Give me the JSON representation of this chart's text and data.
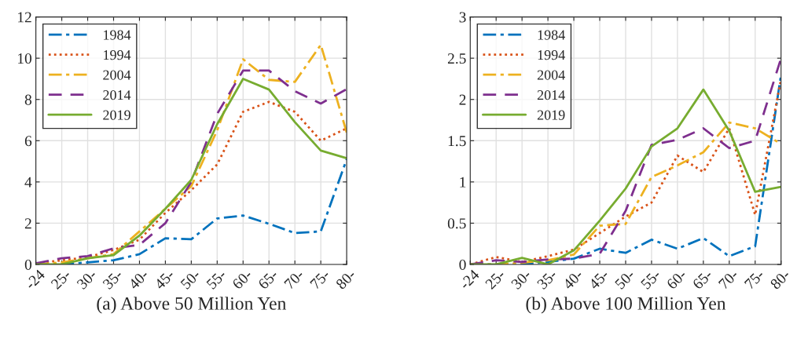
{
  "chart_data": [
    {
      "type": "line",
      "xlabel": "(a) Above 50 Million Yen",
      "categories": [
        "-24",
        "25-",
        "30-",
        "35-",
        "40-",
        "45-",
        "50-",
        "55-",
        "60-",
        "65-",
        "70-",
        "75-",
        "80-"
      ],
      "ylim": [
        0,
        12
      ],
      "yticks": [
        0,
        2,
        4,
        6,
        8,
        10,
        12
      ],
      "grid": true,
      "legend": "top left",
      "series": [
        {
          "name": "1984",
          "color": "#0072bd",
          "line_style": "dashdot",
          "values": [
            0,
            0,
            0.1,
            0.2,
            0.5,
            1.27,
            1.22,
            2.23,
            2.37,
            1.97,
            1.52,
            1.6,
            5.1
          ]
        },
        {
          "name": "1994",
          "color": "#d95319",
          "line_style": "dotted",
          "values": [
            0.05,
            0.2,
            0.35,
            0.7,
            1.2,
            2.5,
            3.6,
            4.85,
            7.4,
            7.88,
            7.4,
            6.0,
            6.6
          ]
        },
        {
          "name": "2004",
          "color": "#edb120",
          "line_style": "dashdot",
          "values": [
            0,
            0.1,
            0.3,
            0.5,
            1.6,
            2.7,
            3.8,
            6.5,
            9.95,
            8.95,
            8.85,
            10.65,
            6.4
          ]
        },
        {
          "name": "2014",
          "color": "#7e2f8e",
          "line_style": "dashed",
          "values": [
            0.05,
            0.3,
            0.4,
            0.78,
            0.95,
            2.0,
            4.0,
            7.3,
            9.4,
            9.4,
            8.4,
            7.8,
            8.5
          ]
        },
        {
          "name": "2019",
          "color": "#77ac30",
          "line_style": "solid",
          "values": [
            0,
            0,
            0.3,
            0.45,
            1.4,
            2.7,
            4.1,
            6.8,
            9.0,
            8.48,
            6.9,
            5.52,
            5.15
          ]
        }
      ]
    },
    {
      "type": "line",
      "xlabel": "(b) Above 100 Million Yen",
      "categories": [
        "-24",
        "25-",
        "30-",
        "35-",
        "40-",
        "45-",
        "50-",
        "55-",
        "60-",
        "65-",
        "70-",
        "75-",
        "80-"
      ],
      "ylim": [
        0,
        3
      ],
      "yticks": [
        0,
        0.5,
        1,
        1.5,
        2,
        2.5,
        3
      ],
      "grid": true,
      "legend": "top left",
      "series": [
        {
          "name": "1984",
          "color": "#0072bd",
          "line_style": "dashdot",
          "values": [
            0,
            0,
            0,
            0.03,
            0.07,
            0.19,
            0.14,
            0.3,
            0.19,
            0.32,
            0.1,
            0.22,
            2.3
          ]
        },
        {
          "name": "1994",
          "color": "#d95319",
          "line_style": "dotted",
          "values": [
            0,
            0.09,
            0.03,
            0.1,
            0.18,
            0.38,
            0.58,
            0.75,
            1.32,
            1.12,
            1.65,
            0.6,
            2.25
          ]
        },
        {
          "name": "2004",
          "color": "#edb120",
          "line_style": "dashdot",
          "values": [
            0,
            0,
            0.02,
            0.05,
            0.12,
            0.47,
            0.49,
            1.06,
            1.2,
            1.36,
            1.72,
            1.65,
            1.46
          ]
        },
        {
          "name": "2014",
          "color": "#7e2f8e",
          "line_style": "dashed",
          "values": [
            0,
            0.05,
            0.03,
            0.06,
            0.07,
            0.13,
            0.65,
            1.45,
            1.51,
            1.65,
            1.41,
            1.5,
            2.5
          ]
        },
        {
          "name": "2019",
          "color": "#77ac30",
          "line_style": "solid",
          "values": [
            0,
            0,
            0.08,
            0,
            0.17,
            0.53,
            0.92,
            1.43,
            1.65,
            2.12,
            1.62,
            0.88,
            0.94
          ]
        }
      ]
    }
  ]
}
